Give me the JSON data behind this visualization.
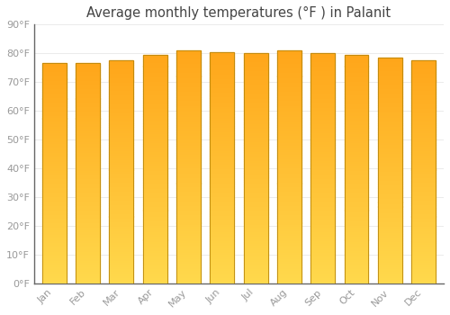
{
  "title": "Average monthly temperatures (°F ) in Palanit",
  "months": [
    "Jan",
    "Feb",
    "Mar",
    "Apr",
    "May",
    "Jun",
    "Jul",
    "Aug",
    "Sep",
    "Oct",
    "Nov",
    "Dec"
  ],
  "values": [
    76.5,
    76.5,
    77.5,
    79.5,
    81.0,
    80.5,
    80.0,
    81.0,
    80.0,
    79.5,
    78.5,
    77.5
  ],
  "ylim": [
    0,
    90
  ],
  "yticks": [
    0,
    10,
    20,
    30,
    40,
    50,
    60,
    70,
    80,
    90
  ],
  "bar_color_top": "#FFB300",
  "bar_color_bottom": "#FFD966",
  "bar_edge_color": "#B8860B",
  "background_color": "#FFFFFF",
  "grid_color": "#E8E8E8",
  "text_color": "#999999",
  "title_color": "#444444",
  "title_fontsize": 10.5,
  "tick_fontsize": 8.0,
  "bar_width": 0.72
}
